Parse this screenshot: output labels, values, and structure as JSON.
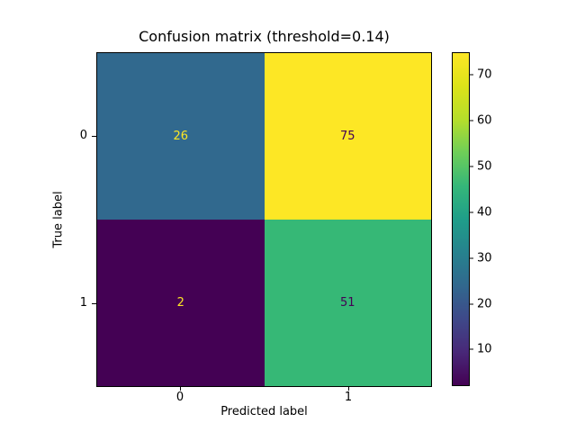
{
  "chart_data": {
    "type": "heatmap",
    "title": "Confusion matrix (threshold=0.14)",
    "xlabel": "Predicted label",
    "ylabel": "True label",
    "x_tick_labels": [
      "0",
      "1"
    ],
    "y_tick_labels": [
      "0",
      "1"
    ],
    "matrix": [
      [
        26,
        75
      ],
      [
        2,
        51
      ]
    ],
    "colormap": "viridis",
    "cell_colors": [
      [
        "#31698e",
        "#fde725"
      ],
      [
        "#440154",
        "#36b876"
      ]
    ],
    "cell_text_colors": [
      [
        "#fde725",
        "#440154"
      ],
      [
        "#fde725",
        "#440154"
      ]
    ],
    "colorbar": {
      "vmin": 2,
      "vmax": 75,
      "ticks": [
        10,
        20,
        30,
        40,
        50,
        60,
        70
      ],
      "gradient": [
        "#440154",
        "#482878",
        "#3e4989",
        "#31688e",
        "#26828e",
        "#1f9e89",
        "#35b779",
        "#6ece58",
        "#b5de2b",
        "#dce319",
        "#fde725"
      ]
    }
  }
}
